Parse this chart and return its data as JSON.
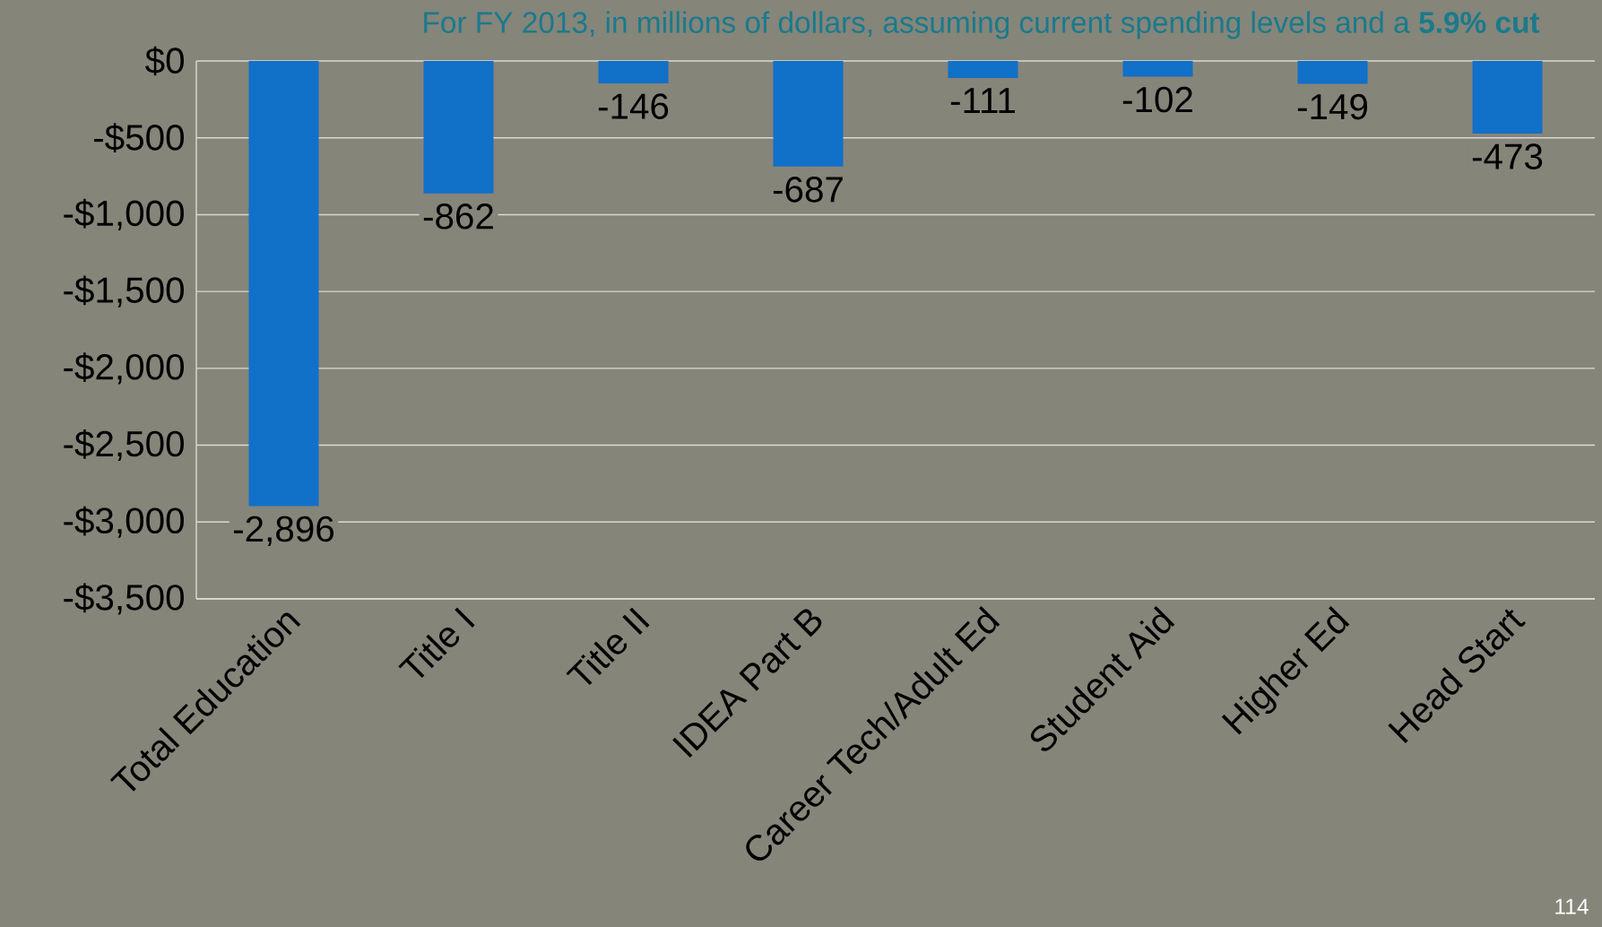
{
  "chart_data": {
    "type": "bar",
    "title": "For FY 2013, in millions of dollars, assuming current spending levels and a **5.9% cut**",
    "categories": [
      "Total Education",
      "Title I",
      "Title II",
      "IDEA Part B",
      "Career Tech/Adult Ed",
      "Student Aid",
      "Higher Ed",
      "Head Start"
    ],
    "values": [
      -2896,
      -862,
      -146,
      -687,
      -111,
      -102,
      -149,
      -473
    ],
    "value_labels": [
      "-2,896",
      "-862",
      "-146",
      "-687",
      "-111",
      "-102",
      "-149",
      "-473"
    ],
    "color": "#1170c8",
    "ylim": [
      -3500,
      0
    ],
    "yticks": [
      {
        "value": 0,
        "label": "$0"
      },
      {
        "value": -500,
        "label": "-$500"
      },
      {
        "value": -1000,
        "label": "-$1,000"
      },
      {
        "value": -1500,
        "label": "-$1,500"
      },
      {
        "value": -2000,
        "label": "-$2,000"
      },
      {
        "value": -2500,
        "label": "-$2,500"
      },
      {
        "value": -3000,
        "label": "-$3,000"
      },
      {
        "value": -3500,
        "label": "-$3,500"
      }
    ],
    "grid": "y",
    "annotations": [
      "114"
    ]
  }
}
